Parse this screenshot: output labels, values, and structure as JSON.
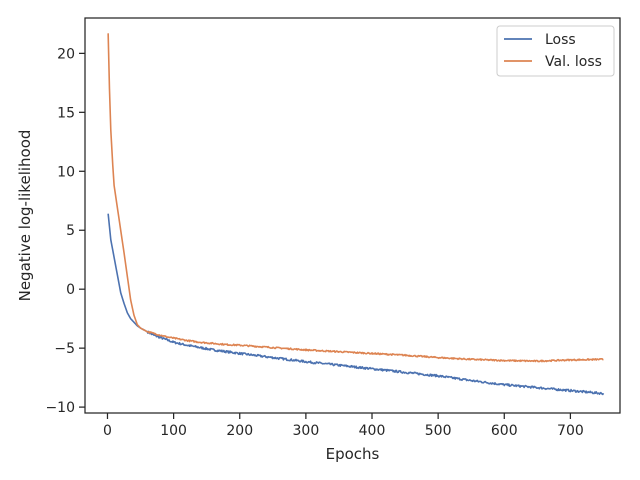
{
  "chart_data": {
    "type": "line",
    "title": "",
    "xlabel": "Epochs",
    "ylabel": "Negative log-likelihood",
    "xlim": [
      -34,
      775
    ],
    "ylim": [
      -10.5,
      23
    ],
    "xticks": [
      0,
      100,
      200,
      300,
      400,
      500,
      600,
      700
    ],
    "yticks": [
      -10,
      -5,
      0,
      5,
      10,
      15,
      20
    ],
    "grid": false,
    "legend_position": "top-right",
    "series": [
      {
        "name": "Loss",
        "color": "#4c72b0",
        "x": [
          1,
          5,
          10,
          15,
          20,
          25,
          30,
          35,
          40,
          45,
          50,
          60,
          70,
          80,
          90,
          100,
          120,
          140,
          160,
          180,
          200,
          250,
          300,
          350,
          400,
          450,
          500,
          550,
          600,
          650,
          700,
          750
        ],
        "y": [
          6.4,
          4.2,
          2.7,
          1.2,
          -0.3,
          -1.2,
          -2.0,
          -2.5,
          -2.8,
          -3.1,
          -3.3,
          -3.6,
          -3.9,
          -4.1,
          -4.3,
          -4.5,
          -4.75,
          -4.95,
          -5.15,
          -5.3,
          -5.45,
          -5.8,
          -6.15,
          -6.45,
          -6.75,
          -7.05,
          -7.35,
          -7.75,
          -8.1,
          -8.35,
          -8.6,
          -8.85
        ]
      },
      {
        "name": "Val. loss",
        "color": "#dd8452",
        "x": [
          1,
          3,
          5,
          8,
          10,
          15,
          20,
          25,
          30,
          35,
          40,
          45,
          50,
          60,
          70,
          80,
          90,
          100,
          120,
          140,
          160,
          180,
          200,
          250,
          300,
          350,
          400,
          450,
          500,
          550,
          600,
          650,
          700,
          750
        ],
        "y": [
          21.7,
          17.0,
          13.5,
          10.5,
          8.8,
          6.9,
          5.0,
          3.1,
          1.1,
          -0.9,
          -2.2,
          -3.0,
          -3.3,
          -3.6,
          -3.75,
          -3.9,
          -4.05,
          -4.15,
          -4.35,
          -4.5,
          -4.6,
          -4.7,
          -4.75,
          -4.95,
          -5.15,
          -5.3,
          -5.45,
          -5.6,
          -5.8,
          -5.95,
          -6.05,
          -6.1,
          -6.0,
          -5.95
        ]
      }
    ]
  }
}
